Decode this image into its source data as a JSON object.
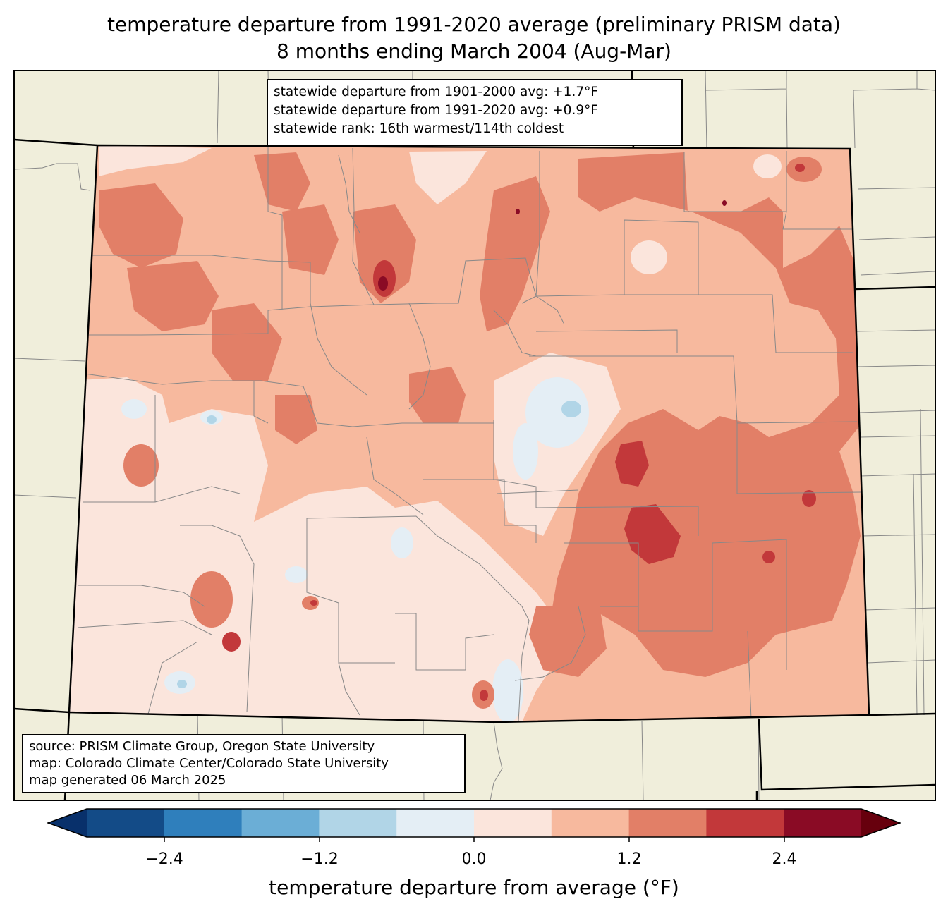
{
  "title": {
    "line1": "temperature departure from 1991-2020 average (preliminary PRISM data)",
    "line2": "8 months ending March 2004 (Aug-Mar)"
  },
  "stats": {
    "line1": "statewide departure from 1901-2000 avg: +1.7°F",
    "line2": "statewide departure from 1991-2020 avg: +0.9°F",
    "line3": "statewide rank: 16th warmest/114th coldest"
  },
  "source": {
    "line1": "source: PRISM Climate Group, Oregon State University",
    "line2": "map: Colorado Climate Center/Colorado State University",
    "line3": "map generated 06 March 2025"
  },
  "colorbar": {
    "label": "temperature departure from average (°F)",
    "ticks": [
      "−2.4",
      "−1.2",
      "0.0",
      "1.2",
      "2.4"
    ],
    "colors": [
      "#08306b",
      "#134b87",
      "#2f7fbc",
      "#6baed6",
      "#b1d5e7",
      "#e4eef5",
      "#fbe5dc",
      "#f7b99e",
      "#e27f67",
      "#c2383a",
      "#8a0b25",
      "#67000d"
    ]
  },
  "map_colors": {
    "land": "#f0eedb",
    "border": "#000000",
    "county": "#888888"
  }
}
